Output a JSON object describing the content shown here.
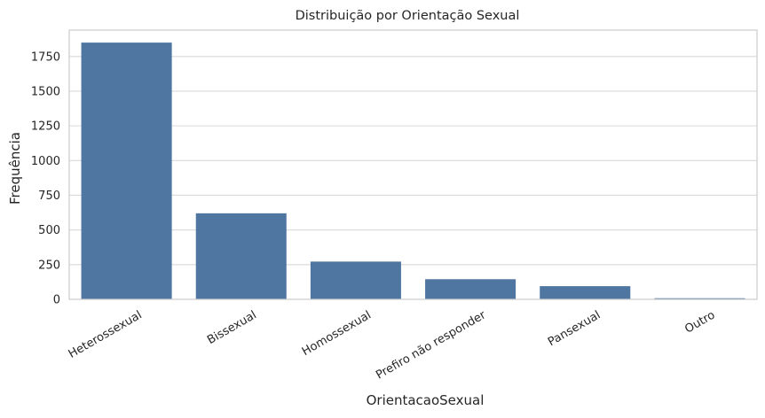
{
  "chart_data": {
    "type": "bar",
    "title": "Distribuição por Orientação Sexual",
    "xlabel": "OrientacaoSexual",
    "ylabel": "Frequência",
    "categories": [
      "Heterossexual",
      "Bissexual",
      "Homossexual",
      "Prefiro não responder",
      "Pansexual",
      "Outro"
    ],
    "values": [
      1850,
      620,
      272,
      145,
      95,
      8
    ],
    "ylim": [
      0,
      1940
    ],
    "yticks": [
      0,
      250,
      500,
      750,
      1000,
      1250,
      1500,
      1750
    ],
    "grid": "horizontal",
    "bar_color": "#4f76a0",
    "grid_color": "#d9d9d9",
    "frame_color": "#cccccc"
  }
}
